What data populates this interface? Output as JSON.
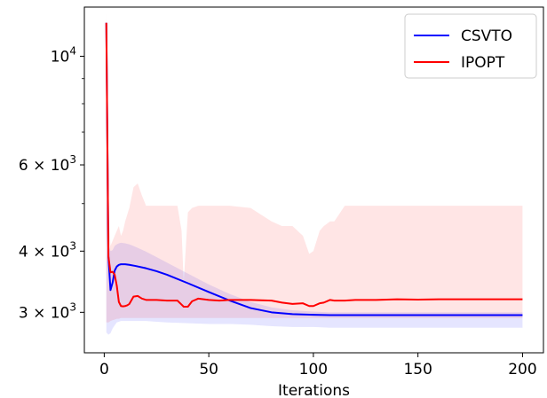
{
  "chart_data": {
    "type": "line",
    "title": "",
    "xlabel": "Iterations",
    "ylabel": "",
    "yscale": "log",
    "xlim": [
      -9.5,
      210
    ],
    "ylim": [
      2480,
      12600
    ],
    "xticks": [
      0,
      50,
      100,
      150,
      200
    ],
    "yticks_major": [
      {
        "value": 10000,
        "base": "10",
        "exp": "4"
      },
      {
        "value": 6000,
        "mant": "6",
        "base": "10",
        "exp": "3"
      },
      {
        "value": 4000,
        "mant": "4",
        "base": "10",
        "exp": "3"
      },
      {
        "value": 3000,
        "mant": "3",
        "base": "10",
        "exp": "3"
      }
    ],
    "yticks_minor": [
      5000,
      7000,
      8000,
      9000
    ],
    "grid": false,
    "legend_position": "top-right",
    "series": [
      {
        "name": "CSVTO",
        "color": "#0000ff",
        "band_color": "#0000ff",
        "band_opacity": 0.1,
        "x": [
          1,
          2,
          3,
          4,
          5,
          6,
          7,
          8,
          10,
          12,
          15,
          20,
          25,
          30,
          40,
          50,
          60,
          70,
          80,
          90,
          100,
          108,
          120,
          140,
          160,
          180,
          200
        ],
        "y": [
          11700,
          3900,
          3330,
          3450,
          3650,
          3720,
          3750,
          3760,
          3760,
          3750,
          3730,
          3690,
          3640,
          3580,
          3440,
          3300,
          3170,
          3060,
          3000,
          2975,
          2965,
          2960,
          2960,
          2960,
          2960,
          2960,
          2960
        ],
        "band_low": [
          2730,
          2700,
          2720,
          2780,
          2820,
          2860,
          2870,
          2880,
          2880,
          2880,
          2880,
          2880,
          2870,
          2860,
          2850,
          2840,
          2840,
          2830,
          2810,
          2800,
          2800,
          2790,
          2790,
          2790,
          2790,
          2790,
          2790
        ],
        "band_high": [
          12000,
          4150,
          4000,
          4020,
          4100,
          4130,
          4150,
          4160,
          4150,
          4130,
          4080,
          3990,
          3890,
          3790,
          3600,
          3420,
          3270,
          3150,
          3070,
          3030,
          3010,
          3000,
          3000,
          3000,
          3000,
          3000,
          3000
        ]
      },
      {
        "name": "IPOPT",
        "color": "#ff0000",
        "band_color": "#ff0000",
        "band_opacity": 0.1,
        "x": [
          1,
          2,
          3,
          4,
          5,
          6,
          7,
          8,
          9,
          10,
          11,
          12,
          14,
          16,
          18,
          20,
          25,
          30,
          35,
          37,
          38,
          40,
          42,
          45,
          50,
          55,
          60,
          70,
          80,
          85,
          90,
          95,
          98,
          100,
          103,
          105,
          108,
          110,
          115,
          120,
          130,
          140,
          150,
          160,
          170,
          180,
          190,
          200
        ],
        "y": [
          11700,
          3900,
          3620,
          3630,
          3580,
          3400,
          3150,
          3090,
          3085,
          3090,
          3100,
          3120,
          3230,
          3240,
          3200,
          3180,
          3180,
          3170,
          3170,
          3110,
          3080,
          3080,
          3160,
          3200,
          3180,
          3170,
          3180,
          3180,
          3170,
          3140,
          3120,
          3130,
          3090,
          3090,
          3130,
          3140,
          3180,
          3170,
          3170,
          3180,
          3180,
          3190,
          3185,
          3190,
          3190,
          3190,
          3190,
          3190
        ],
        "band_low": [
          2860,
          2860,
          2880,
          2890,
          2900,
          2910,
          2910,
          2920,
          2920,
          2920,
          2920,
          2920,
          2920,
          2920,
          2920,
          2920,
          2920,
          2920,
          2920,
          2920,
          2920,
          2920,
          2920,
          2920,
          2920,
          2920,
          2920,
          2920,
          2920,
          2920,
          2920,
          2920,
          2920,
          2920,
          2920,
          2920,
          2920,
          2920,
          2920,
          2920,
          2920,
          2920,
          2920,
          2920,
          2920,
          2920,
          2920,
          2920
        ],
        "band_high": [
          12300,
          4800,
          4100,
          4200,
          4300,
          4400,
          4500,
          4300,
          4400,
          4600,
          4750,
          4900,
          5400,
          5500,
          5200,
          4950,
          4950,
          4950,
          4950,
          4400,
          3450,
          4800,
          4900,
          4950,
          4950,
          4950,
          4950,
          4900,
          4600,
          4500,
          4500,
          4300,
          3950,
          4000,
          4400,
          4500,
          4600,
          4600,
          4950,
          4950,
          4950,
          4950,
          4950,
          4950,
          4950,
          4950,
          4950,
          4950
        ]
      }
    ]
  }
}
